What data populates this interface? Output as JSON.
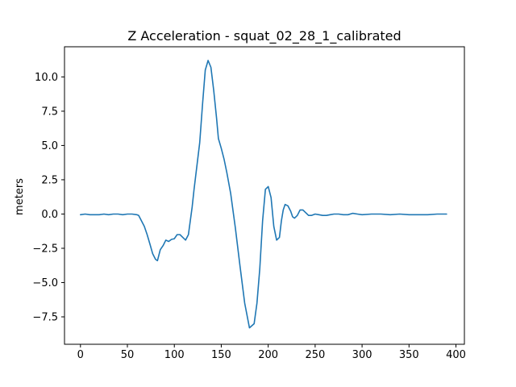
{
  "chart_data": {
    "type": "line",
    "title": "Z Acceleration - squat_02_28_1_calibrated",
    "xlabel": "",
    "ylabel": "meters",
    "xlim": [
      -17,
      409
    ],
    "ylim": [
      -9.5,
      12.2
    ],
    "xticks": [
      0,
      50,
      100,
      150,
      200,
      250,
      300,
      350,
      400
    ],
    "yticks": [
      -7.5,
      -5.0,
      -2.5,
      0.0,
      2.5,
      5.0,
      7.5,
      10.0
    ],
    "ytick_labels": [
      "−7.5",
      "−5.0",
      "−2.5",
      "0.0",
      "2.5",
      "5.0",
      "7.5",
      "10.0"
    ],
    "grid": false,
    "legend": "none",
    "line_color": "#1f77b4",
    "series": [
      {
        "x": [
          0,
          5,
          10,
          15,
          20,
          25,
          30,
          35,
          40,
          45,
          50,
          55,
          60,
          62,
          65,
          68,
          71,
          74,
          77,
          80,
          82,
          85,
          88,
          91,
          94,
          97,
          100,
          103,
          106,
          109,
          112,
          115,
          117,
          119,
          121,
          124,
          127,
          130,
          133,
          136,
          139,
          142,
          145,
          147,
          150,
          153,
          156,
          160,
          165,
          170,
          175,
          180,
          185,
          188,
          191,
          194,
          197,
          200,
          203,
          206,
          209,
          212,
          214,
          216,
          218,
          221,
          224,
          226,
          228,
          231,
          234,
          237,
          240,
          243,
          246,
          250,
          254,
          258,
          262,
          266,
          270,
          275,
          280,
          285,
          290,
          295,
          300,
          310,
          320,
          330,
          340,
          350,
          360,
          370,
          380,
          390
        ],
        "y": [
          -0.05,
          0.0,
          -0.05,
          -0.05,
          -0.05,
          0.0,
          -0.05,
          0.0,
          0.0,
          -0.05,
          0.0,
          0.0,
          -0.05,
          -0.1,
          -0.5,
          -0.9,
          -1.5,
          -2.2,
          -2.9,
          -3.3,
          -3.4,
          -2.6,
          -2.3,
          -1.9,
          -2.0,
          -1.85,
          -1.8,
          -1.5,
          -1.5,
          -1.7,
          -1.9,
          -1.5,
          -0.5,
          0.5,
          1.8,
          3.5,
          5.2,
          8.0,
          10.5,
          11.2,
          10.7,
          9.0,
          7.0,
          5.5,
          4.8,
          4.0,
          3.0,
          1.5,
          -1.0,
          -3.8,
          -6.5,
          -8.3,
          -8.0,
          -6.5,
          -4.0,
          -0.5,
          1.8,
          2.0,
          1.2,
          -0.9,
          -1.9,
          -1.7,
          -0.5,
          0.3,
          0.7,
          0.6,
          0.2,
          -0.2,
          -0.3,
          -0.1,
          0.3,
          0.3,
          0.1,
          -0.1,
          -0.1,
          0.0,
          -0.05,
          -0.1,
          -0.1,
          -0.05,
          0.0,
          0.0,
          -0.05,
          -0.05,
          0.05,
          0.0,
          -0.05,
          0.0,
          0.0,
          -0.05,
          0.0,
          -0.05,
          -0.05,
          -0.05,
          0.0,
          0.0
        ]
      }
    ]
  }
}
